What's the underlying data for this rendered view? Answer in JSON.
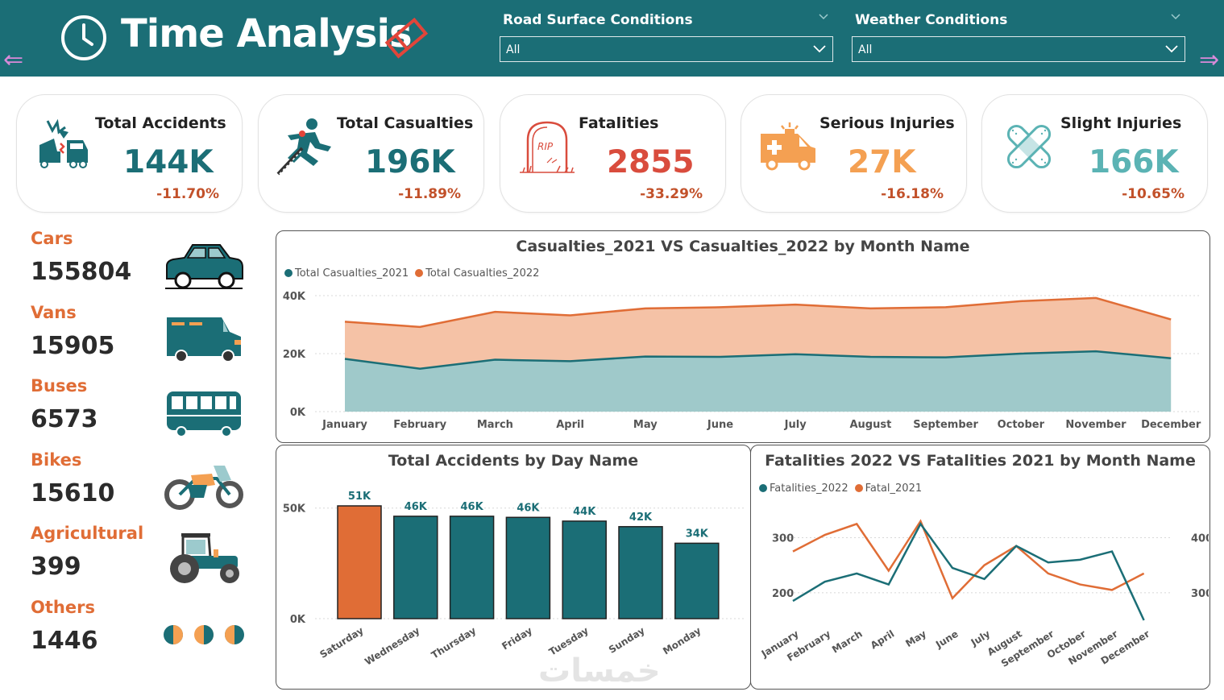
{
  "header": {
    "title": "Time Analysis",
    "filters": [
      {
        "label": "Road Surface Conditions",
        "value": "All"
      },
      {
        "label": "Weather Conditions",
        "value": "All"
      }
    ]
  },
  "colors": {
    "teal": "#1b6e76",
    "orange": "#e06d36",
    "red": "#d94c3d",
    "lightorange": "#f4a052",
    "lightteal": "#5bb3b4",
    "pctred": "#c2512a"
  },
  "kpis": [
    {
      "title": "Total Accidents",
      "value": "144K",
      "change": "-11.70%",
      "icon": "car-crash-icon",
      "color": "#1b6e76"
    },
    {
      "title": "Total Casualties",
      "value": "196K",
      "change": "-11.89%",
      "icon": "runner-casualty-icon",
      "color": "#1b6e76"
    },
    {
      "title": "Fatalities",
      "value": "2855",
      "change": "-33.29%",
      "icon": "tombstone-icon",
      "color": "#d94c3d"
    },
    {
      "title": "Serious Injuries",
      "value": "27K",
      "change": "-16.18%",
      "icon": "ambulance-icon",
      "color": "#f4a052"
    },
    {
      "title": "Slight Injuries",
      "value": "166K",
      "change": "-10.65%",
      "icon": "bandage-icon",
      "color": "#5bb3b4"
    }
  ],
  "vehicles": [
    {
      "label": "Cars",
      "value": "155804",
      "icon": "car-icon"
    },
    {
      "label": "Vans",
      "value": "15905",
      "icon": "van-icon"
    },
    {
      "label": "Buses",
      "value": "6573",
      "icon": "bus-icon"
    },
    {
      "label": "Bikes",
      "value": "15610",
      "icon": "motorbike-icon"
    },
    {
      "label": "Agricultural",
      "value": "399",
      "icon": "tractor-icon"
    },
    {
      "label": "Others",
      "value": "1446",
      "icon": "moon-phases-icon"
    }
  ],
  "chart_data": [
    {
      "type": "area",
      "title": "Casualties_2021 VS Casualties_2022 by Month Name",
      "categories": [
        "January",
        "February",
        "March",
        "April",
        "May",
        "June",
        "July",
        "August",
        "September",
        "October",
        "November",
        "December"
      ],
      "series": [
        {
          "name": "Total Casualties_2021",
          "values": [
            18200,
            14800,
            17900,
            17400,
            19000,
            18900,
            19800,
            18900,
            18700,
            20000,
            20800,
            18400
          ],
          "color": "#1b6e76"
        },
        {
          "name": "Total Casualties_2022",
          "values": [
            31000,
            29200,
            34400,
            33200,
            35600,
            36000,
            36900,
            35600,
            36000,
            38100,
            39200,
            31800
          ],
          "color": "#e06d36"
        }
      ],
      "ylim": [
        0,
        40000
      ],
      "yticks": [
        "0K",
        "20K",
        "40K"
      ],
      "grid": true,
      "legend": "top-left"
    },
    {
      "type": "bar",
      "title": "Total Accidents by Day Name",
      "categories": [
        "Saturday",
        "Wednesday",
        "Thursday",
        "Friday",
        "Tuesday",
        "Sunday",
        "Monday"
      ],
      "values": [
        51000,
        46300,
        46300,
        45800,
        44100,
        41600,
        34100
      ],
      "labels": [
        "51K",
        "46K",
        "46K",
        "46K",
        "44K",
        "42K",
        "34K"
      ],
      "colors": [
        "#e06d36",
        "#1b6e76",
        "#1b6e76",
        "#1b6e76",
        "#1b6e76",
        "#1b6e76",
        "#1b6e76"
      ],
      "ylim": [
        0,
        51000
      ],
      "yticks": [
        "0K",
        "50K"
      ]
    },
    {
      "type": "line",
      "title": "Fatalities 2022 VS Fatalities 2021 by Month Name",
      "categories": [
        "January",
        "February",
        "March",
        "April",
        "May",
        "June",
        "July",
        "August",
        "September",
        "October",
        "November",
        "December"
      ],
      "series": [
        {
          "name": "Fatalities_2022",
          "values": [
            185,
            220,
            235,
            215,
            325,
            245,
            225,
            285,
            255,
            260,
            275,
            150
          ],
          "axis": "left",
          "color": "#1b6e76"
        },
        {
          "name": "Fatal_2021",
          "values": [
            375,
            405,
            425,
            340,
            430,
            290,
            350,
            385,
            335,
            315,
            305,
            335
          ],
          "axis": "right",
          "color": "#e06d36"
        }
      ],
      "left_axis": {
        "ylim": [
          150,
          330
        ],
        "ticks": [
          "200",
          "300"
        ]
      },
      "right_axis": {
        "ylim": [
          250,
          430
        ],
        "ticks": [
          "300",
          "400"
        ]
      },
      "legend": "top-left"
    }
  ],
  "watermark": "خمسات"
}
